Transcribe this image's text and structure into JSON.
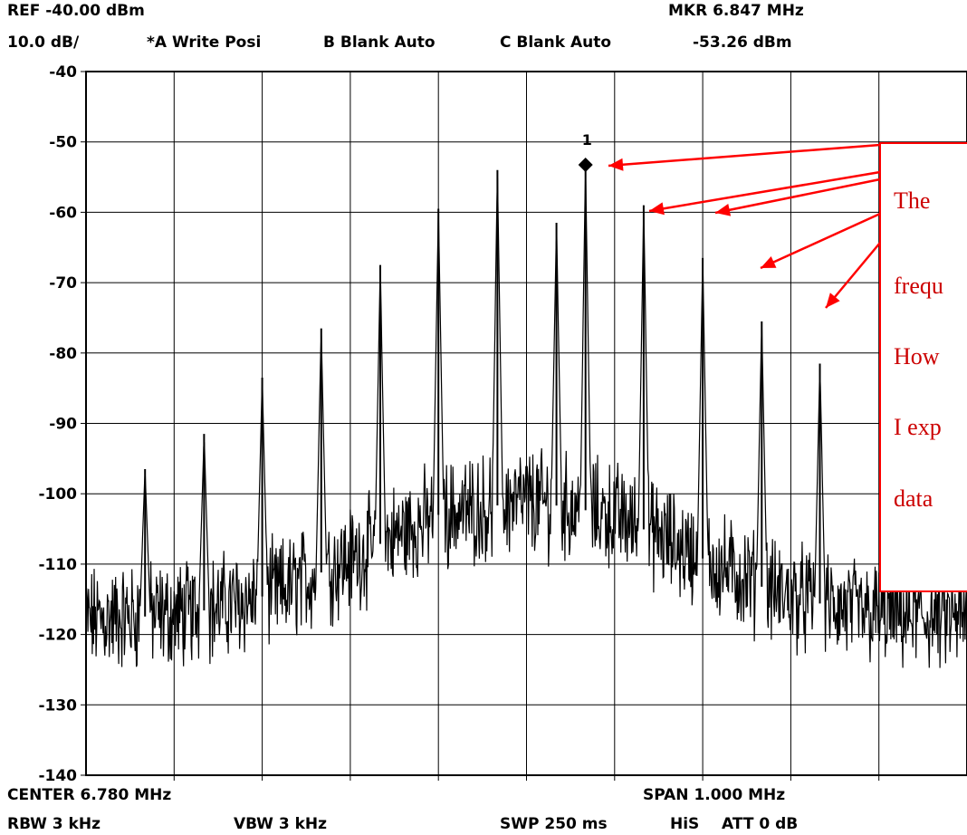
{
  "header": {
    "ref": "REF  -40.00 dBm",
    "mkr": "MKR 6.847 MHz",
    "scale": "10.0 dB/",
    "trace_a": "*A Write Posi",
    "trace_b": "B Blank Auto",
    "trace_c": "C Blank Auto",
    "mkr_level": "-53.26 dBm"
  },
  "footer": {
    "center": "CENTER 6.780 MHz",
    "span": "SPAN 1.000 MHz",
    "rbw": "RBW 3 kHz",
    "vbw": "VBW 3 kHz",
    "swp": "SWP 250 ms",
    "his": "HiS",
    "att": "ATT 0 dB"
  },
  "annotation": {
    "lines": [
      "The",
      "frequ",
      "How",
      "I exp",
      "data"
    ]
  },
  "colors": {
    "trace": "#000000",
    "grid": "#000000",
    "annotation": "#ff0000",
    "annotation_text": "#cc0000"
  },
  "chart_data": {
    "type": "line",
    "title": "",
    "xlabel": "",
    "ylabel": "",
    "ylim": [
      -140,
      -40
    ],
    "xlim": [
      6.28,
      7.28
    ],
    "x_unit": "MHz",
    "y_unit": "dBm",
    "grid": true,
    "y_ticks": [
      "-40",
      "-50",
      "-60",
      "-70",
      "-80",
      "-90",
      "-100",
      "-110",
      "-120",
      "-130",
      "-140"
    ],
    "marker": {
      "label": "1",
      "x": 6.847,
      "y": -53.26
    },
    "peaks": [
      {
        "x": 6.347,
        "y": -96.5
      },
      {
        "x": 6.414,
        "y": -91.5
      },
      {
        "x": 6.48,
        "y": -83.5
      },
      {
        "x": 6.547,
        "y": -76.5
      },
      {
        "x": 6.614,
        "y": -67.5
      },
      {
        "x": 6.68,
        "y": -59.5
      },
      {
        "x": 6.747,
        "y": -54.0
      },
      {
        "x": 6.814,
        "y": -61.5
      },
      {
        "x": 6.847,
        "y": -53.26
      },
      {
        "x": 6.913,
        "y": -59.0
      },
      {
        "x": 6.98,
        "y": -66.5
      },
      {
        "x": 7.047,
        "y": -75.5
      },
      {
        "x": 7.113,
        "y": -81.5
      }
    ],
    "noise_floor": [
      {
        "x": 6.28,
        "y": -118
      },
      {
        "x": 6.4,
        "y": -117
      },
      {
        "x": 6.5,
        "y": -114
      },
      {
        "x": 6.6,
        "y": -108
      },
      {
        "x": 6.68,
        "y": -103
      },
      {
        "x": 6.78,
        "y": -101
      },
      {
        "x": 6.88,
        "y": -103
      },
      {
        "x": 6.96,
        "y": -108
      },
      {
        "x": 7.06,
        "y": -114
      },
      {
        "x": 7.16,
        "y": -117
      },
      {
        "x": 7.28,
        "y": -118
      }
    ]
  }
}
